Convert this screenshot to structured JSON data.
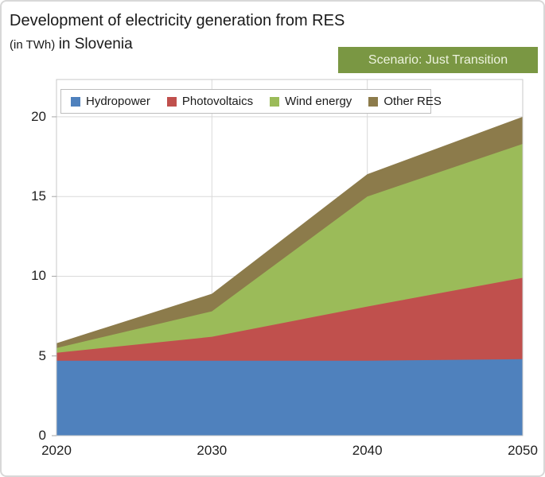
{
  "header": {
    "title": "Development of electricity generation from RES",
    "unit_label": "(in TWh)",
    "region_label": "in Slovenia"
  },
  "badge": {
    "label": "Scenario: Just Transition",
    "bg": "#7A9743",
    "text_color": "#EDF3DF"
  },
  "chart_data": {
    "type": "area",
    "stacked": true,
    "title": "Development of electricity generation from RES (in TWh) in Slovenia",
    "unit": "TWh",
    "categories": [
      "2020",
      "2030",
      "2040",
      "2050"
    ],
    "series": [
      {
        "name": "Hydropower",
        "color": "#4F81BD",
        "values": [
          4.7,
          4.7,
          4.7,
          4.8
        ]
      },
      {
        "name": "Photovoltaics",
        "color": "#C0504D",
        "values": [
          0.5,
          1.5,
          3.4,
          5.1
        ]
      },
      {
        "name": "Wind energy",
        "color": "#9BBB59",
        "values": [
          0.3,
          1.6,
          6.9,
          8.4
        ]
      },
      {
        "name": "Other RES",
        "color": "#8C7B4B",
        "values": [
          0.3,
          1.1,
          1.4,
          1.7
        ]
      }
    ],
    "totals": [
      5.8,
      8.9,
      16.4,
      20.0
    ],
    "yticks": [
      0,
      5,
      10,
      15,
      20
    ],
    "ylim": [
      0,
      22.34
    ],
    "grid": true,
    "legend_position": "top",
    "grid_color": "#D9D9D9",
    "border_color": "#C9C9C9",
    "tick_color": "#A6A6A6"
  }
}
